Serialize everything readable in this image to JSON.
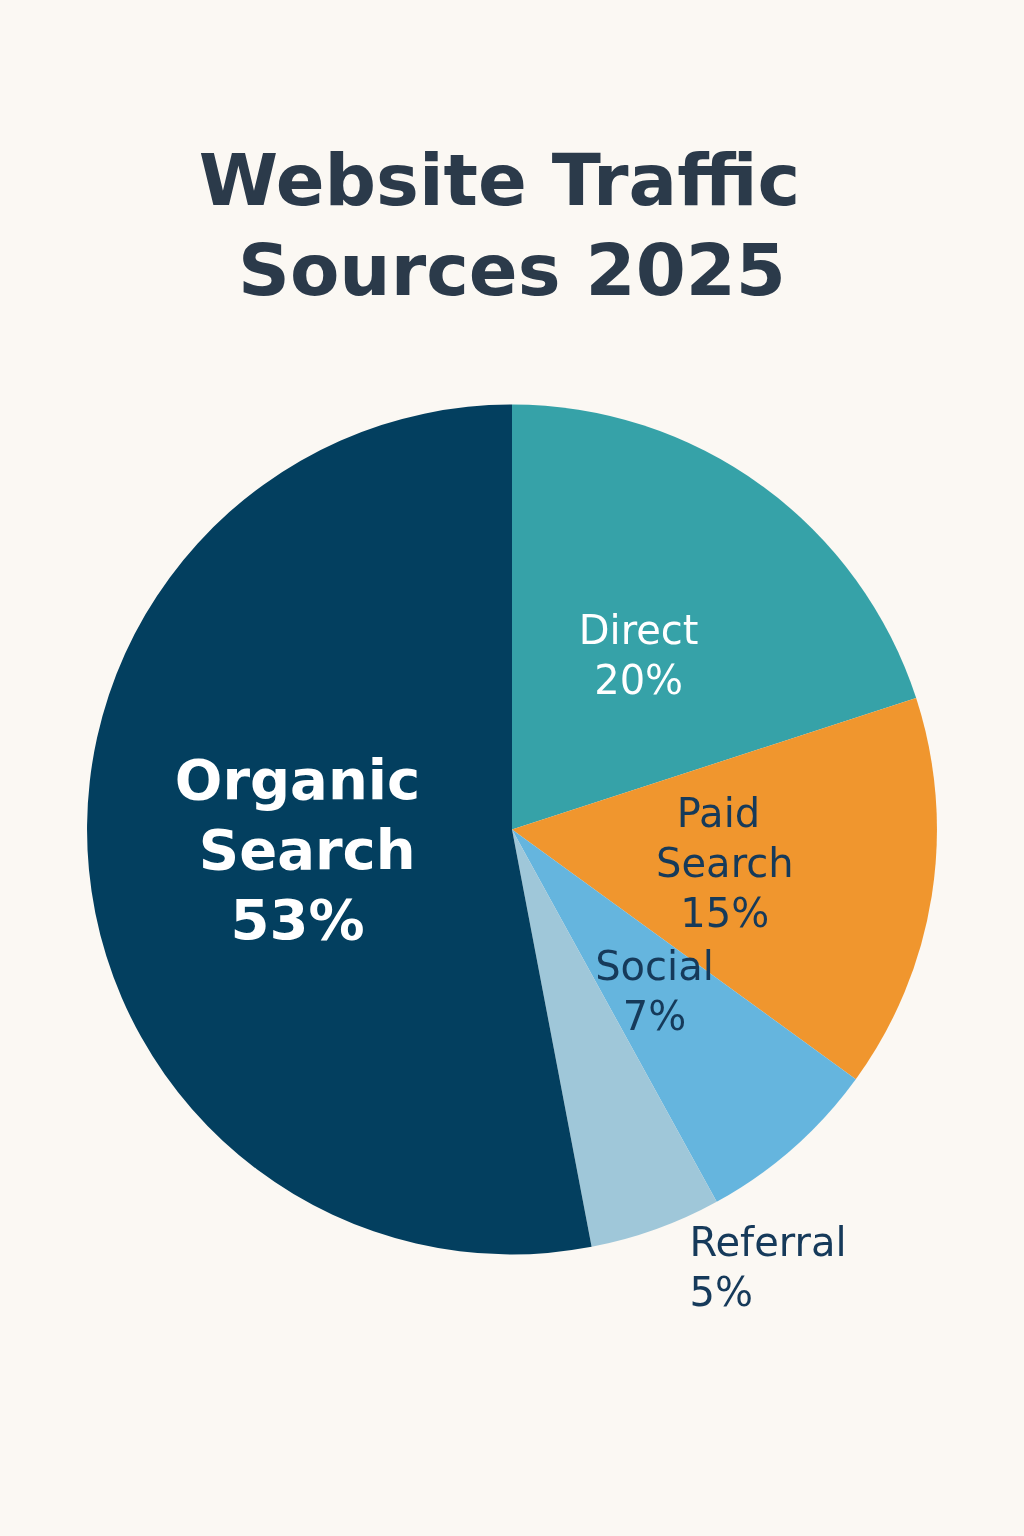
{
  "chart_data": {
    "type": "pie",
    "title": "Website Traffic Sources 2025",
    "categories": [
      "Direct",
      "Paid Search",
      "Social",
      "Referral",
      "Organic Search"
    ],
    "values": [
      20,
      15,
      7,
      5,
      53
    ],
    "value_labels": [
      "20%",
      "15%",
      "7%",
      "5%",
      "53%"
    ],
    "colors": [
      "#36a2a8",
      "#f0962e",
      "#65b5de",
      "#9fc7d9",
      "#033f5f"
    ],
    "legend": false
  }
}
